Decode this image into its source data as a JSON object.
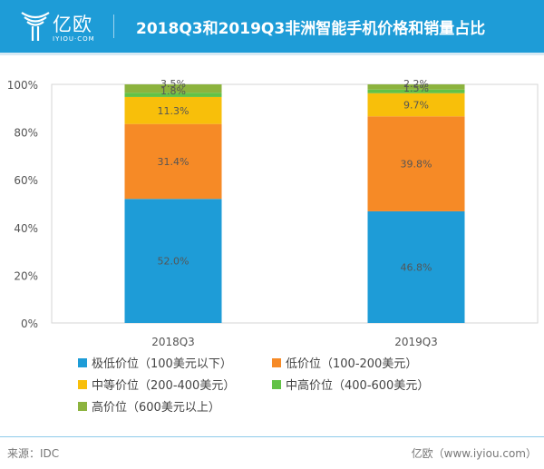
{
  "header": {
    "logo_text": "亿欧",
    "logo_subtext": "IYIOU·COM",
    "title": "2018Q3和2019Q3非洲智能手机价格和销量占比"
  },
  "chart_data": {
    "type": "bar",
    "stacked": true,
    "title": "2018Q3和2019Q3非洲智能手机价格和销量占比",
    "xlabel": "",
    "ylabel": "",
    "categories": [
      "2018Q3",
      "2019Q3"
    ],
    "ylim": [
      0,
      100
    ],
    "yticks": [
      "0%",
      "20%",
      "40%",
      "60%",
      "80%",
      "100%"
    ],
    "grid": false,
    "legend_position": "bottom",
    "series": [
      {
        "name": "极低价位（100美元以下）",
        "color": "#1e9cd7",
        "values": [
          52.0,
          46.8
        ],
        "labels": [
          "52.0%",
          "46.8%"
        ]
      },
      {
        "name": "低价位（100-200美元）",
        "color": "#f68a26",
        "values": [
          31.4,
          39.8
        ],
        "labels": [
          "31.4%",
          "39.8%"
        ]
      },
      {
        "name": "中等价位（200-400美元）",
        "color": "#f8bf0a",
        "values": [
          11.3,
          9.7
        ],
        "labels": [
          "11.3%",
          "9.7%"
        ]
      },
      {
        "name": "中高价位（400-600美元）",
        "color": "#62c246",
        "values": [
          1.8,
          1.5
        ],
        "labels": [
          "1.8%",
          "1.5%"
        ]
      },
      {
        "name": "高价位（600美元以上）",
        "color": "#8cb33e",
        "values": [
          3.5,
          2.2
        ],
        "labels": [
          "3.5%",
          "2.2%"
        ]
      }
    ]
  },
  "footer": {
    "source": "来源：IDC",
    "brand": "亿欧（www.iyiou.com）"
  }
}
